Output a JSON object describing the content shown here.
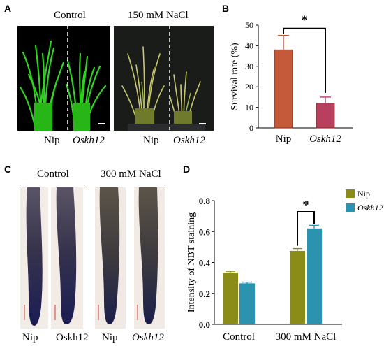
{
  "panelA": {
    "letter": "A",
    "control_label": "Control",
    "nacl_label": "150 mM NaCl",
    "genotypes": [
      "Nip",
      "Oskh12",
      "Nip",
      "Oskh12"
    ]
  },
  "panelB": {
    "letter": "B",
    "sig": "*",
    "colors": {
      "Nip": "#c55a3a",
      "Oskh12": "#b8405e"
    }
  },
  "panelC": {
    "letter": "C",
    "control_label": "Control",
    "nacl_label": "300 mM NaCl",
    "genotypes": [
      "Nip",
      "Oskh12",
      "Nip",
      "Oskh12"
    ]
  },
  "panelD": {
    "letter": "D",
    "sig": "*",
    "colors": {
      "Nip": "#8b8b18",
      "Oskh12": "#2b93b0"
    }
  },
  "chart_data": [
    {
      "type": "bar",
      "panel": "B",
      "categories": [
        "Nip",
        "Oskh12"
      ],
      "values": [
        38,
        12
      ],
      "errors": [
        7,
        3
      ],
      "ylabel": "Survival rate (%)",
      "xlabel": "",
      "ylim": [
        0,
        50
      ],
      "yticks": [
        0,
        10,
        20,
        30,
        40,
        50
      ],
      "grid": false
    },
    {
      "type": "bar",
      "panel": "D",
      "categories": [
        "Control",
        "300 mM NaCl"
      ],
      "series": [
        {
          "name": "Nip",
          "values": [
            0.335,
            0.475
          ],
          "errors": [
            0.008,
            0.015
          ]
        },
        {
          "name": "Oskh12",
          "values": [
            0.265,
            0.62
          ],
          "errors": [
            0.008,
            0.02
          ]
        }
      ],
      "ylabel": "Intensity of NBT staining",
      "xlabel": "",
      "ylim": [
        0,
        0.8
      ],
      "yticks": [
        "0.0",
        "0.2",
        "0.4",
        "0.6",
        "0.8"
      ],
      "legend": "top-right",
      "grid": false
    }
  ]
}
